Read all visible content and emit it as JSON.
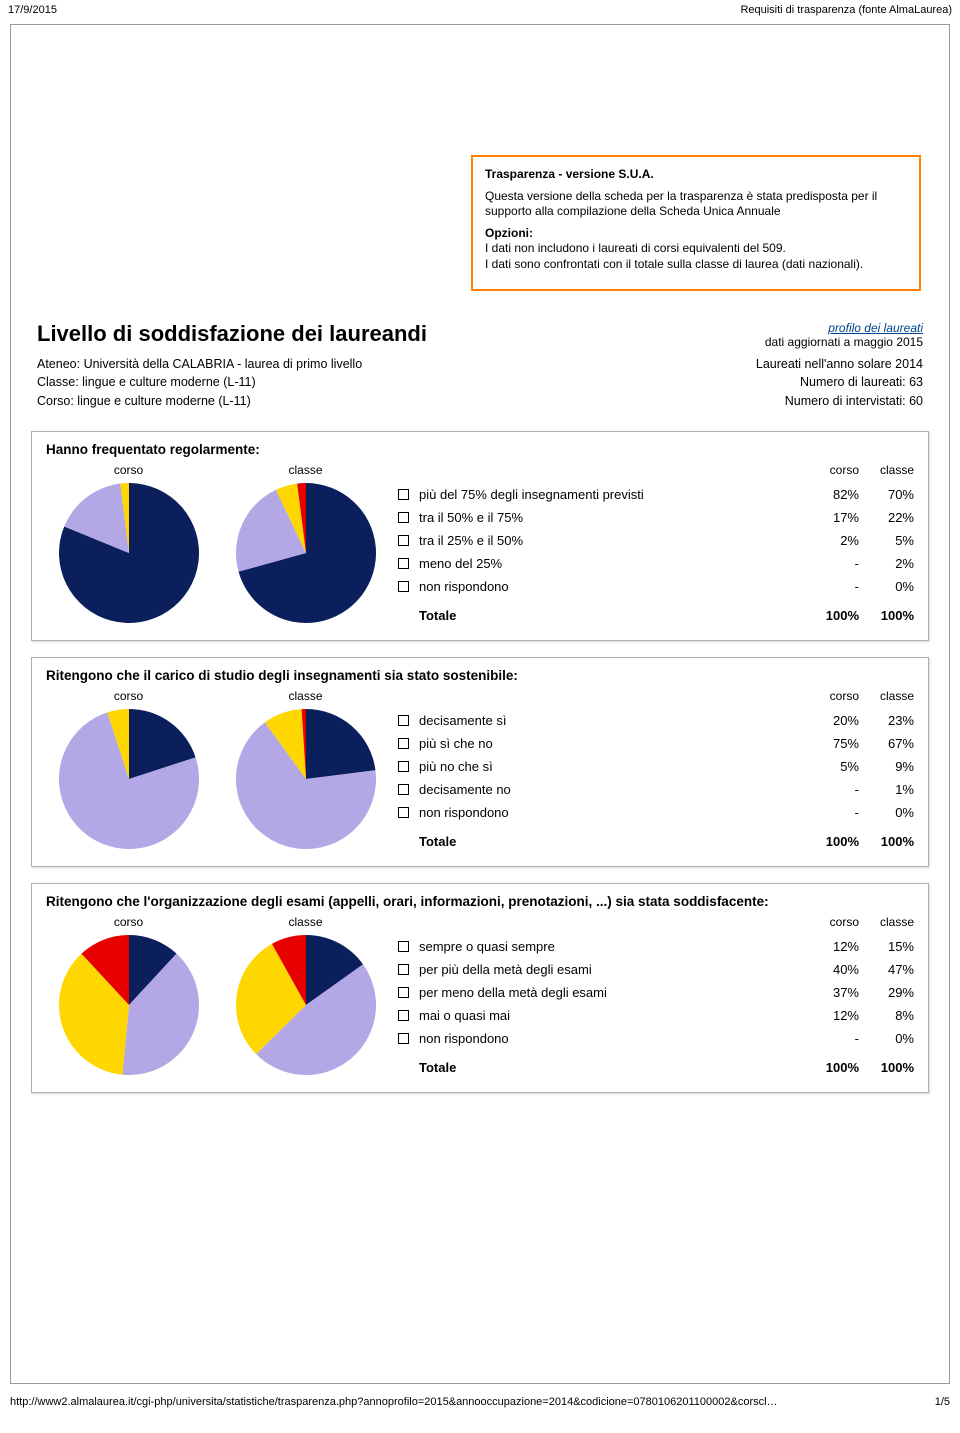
{
  "header": {
    "date": "17/9/2015",
    "title": "Requisiti di trasparenza (fonte AlmaLaurea)"
  },
  "info_box": {
    "title": "Trasparenza - versione S.U.A.",
    "p1": "Questa versione della scheda per la trasparenza è stata predisposta per il supporto alla compilazione della Scheda Unica Annuale",
    "opt_label": "Opzioni:",
    "opt1": "I dati non includono i laureati di corsi equivalenti del 509.",
    "opt2": "I dati sono confrontati con il totale sulla classe di laurea (dati nazionali).",
    "border_color": "#ff8000"
  },
  "title_block": {
    "main": "Livello di soddisfazione dei laureandi",
    "link": "profilo dei laureati",
    "sub": "dati aggiornati a maggio 2015"
  },
  "meta": {
    "ateneo": "Ateneo: Università della CALABRIA - laurea di primo livello",
    "classe": "Classe: lingue e culture moderne (L-11)",
    "corso": "Corso: lingue e culture moderne (L-11)",
    "r1": "Laureati nell'anno solare 2014",
    "r2": "Numero di laureati: 63",
    "r3": "Numero di intervistati: 60"
  },
  "colors": {
    "navy": "#0a1f5c",
    "lavender": "#b3a7e6",
    "yellow": "#ffd700",
    "red": "#e60000",
    "grey": "#cccccc"
  },
  "labels": {
    "corso": "corso",
    "classe": "classe",
    "totale": "Totale",
    "t100": "100%"
  },
  "sections": [
    {
      "title": "Hanno frequentato regolarmente:",
      "rows": [
        {
          "label": "più del 75% degli insegnamenti previsti",
          "corso": "82%",
          "classe": "70%"
        },
        {
          "label": "tra il 50% e il 75%",
          "corso": "17%",
          "classe": "22%"
        },
        {
          "label": "tra il 25% e il 50%",
          "corso": "2%",
          "classe": "5%"
        },
        {
          "label": "meno del 25%",
          "corso": "-",
          "classe": "2%"
        },
        {
          "label": "non rispondono",
          "corso": "-",
          "classe": "0%"
        }
      ],
      "pie_corso": [
        82,
        17,
        2,
        0,
        0
      ],
      "pie_classe": [
        70,
        22,
        5,
        2,
        0
      ]
    },
    {
      "title": "Ritengono che il carico di studio degli insegnamenti sia stato sostenibile:",
      "rows": [
        {
          "label": "decisamente sì",
          "corso": "20%",
          "classe": "23%"
        },
        {
          "label": "più sì che no",
          "corso": "75%",
          "classe": "67%"
        },
        {
          "label": "più no che sì",
          "corso": "5%",
          "classe": "9%"
        },
        {
          "label": "decisamente no",
          "corso": "-",
          "classe": "1%"
        },
        {
          "label": "non rispondono",
          "corso": "-",
          "classe": "0%"
        }
      ],
      "pie_corso": [
        20,
        75,
        5,
        0,
        0
      ],
      "pie_classe": [
        23,
        67,
        9,
        1,
        0
      ]
    },
    {
      "title": "Ritengono che l'organizzazione degli esami (appelli, orari, informazioni, prenotazioni, ...) sia stata soddisfacente:",
      "rows": [
        {
          "label": "sempre o quasi sempre",
          "corso": "12%",
          "classe": "15%"
        },
        {
          "label": "per più della metà degli esami",
          "corso": "40%",
          "classe": "47%"
        },
        {
          "label": "per meno della metà degli esami",
          "corso": "37%",
          "classe": "29%"
        },
        {
          "label": "mai o quasi mai",
          "corso": "12%",
          "classe": "8%"
        },
        {
          "label": "non rispondono",
          "corso": "-",
          "classe": "0%"
        }
      ],
      "pie_corso": [
        12,
        40,
        37,
        12,
        0
      ],
      "pie_classe": [
        15,
        47,
        29,
        8,
        0
      ]
    }
  ],
  "footer": {
    "url": "http://www2.almalaurea.it/cgi-php/universita/statistiche/trasparenza.php?annoprofilo=2015&annooccupazione=2014&codicione=0780106201100002&corscl…",
    "page": "1/5"
  }
}
